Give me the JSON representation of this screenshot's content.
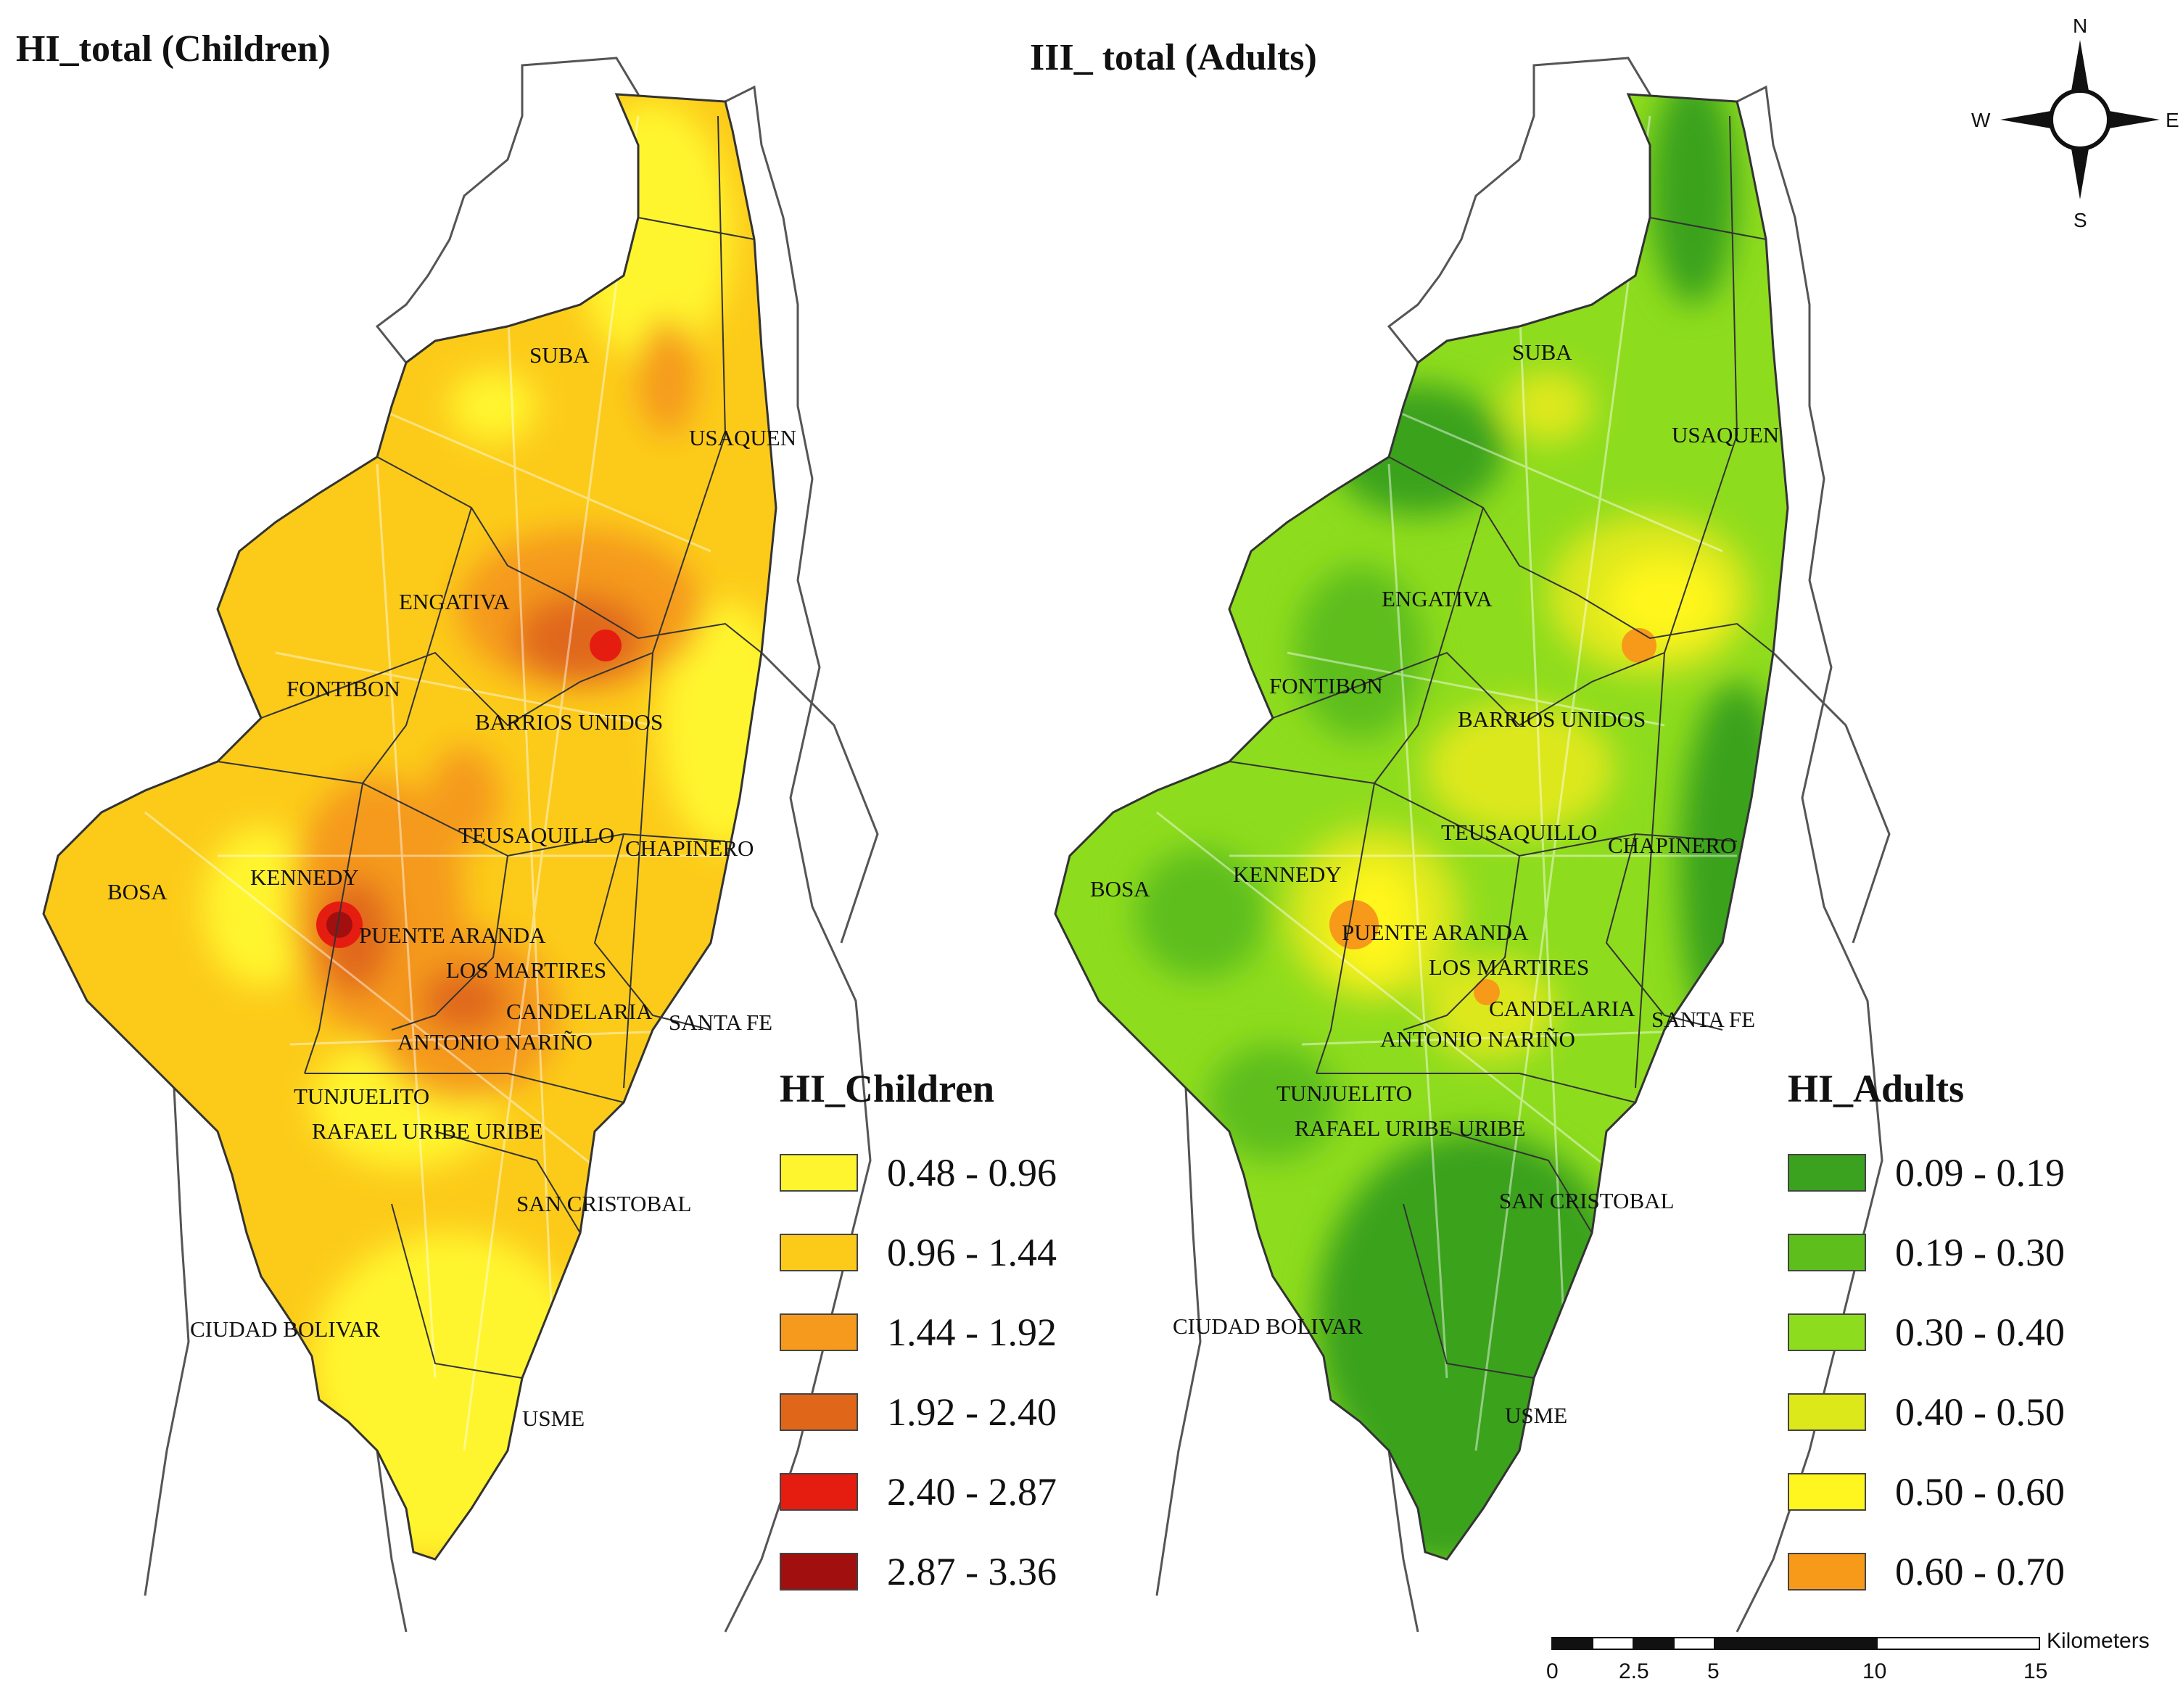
{
  "panels": {
    "children": {
      "title": "HI_total (Children)",
      "legend_title": "HI_Children",
      "classes": [
        {
          "range": "0.48 - 0.96",
          "color": "#FFF52E"
        },
        {
          "range": "0.96 - 1.44",
          "color": "#FCCB1A"
        },
        {
          "range": "1.44 - 1.92",
          "color": "#F59A1C"
        },
        {
          "range": "1.92 - 2.40",
          "color": "#E0671A"
        },
        {
          "range": "2.40 - 2.87",
          "color": "#E51D10"
        },
        {
          "range": "2.87 - 3.36",
          "color": "#A10F0F"
        }
      ],
      "base_color": "#FCCB1A"
    },
    "adults": {
      "title": "III_ total (Adults)",
      "legend_title": "HI_Adults",
      "classes": [
        {
          "range": "0.09 - 0.19",
          "color": "#3AA21F"
        },
        {
          "range": "0.19 - 0.30",
          "color": "#5DBE1C"
        },
        {
          "range": "0.30 - 0.40",
          "color": "#8EDC1E"
        },
        {
          "range": "0.40 - 0.50",
          "color": "#DDE81A"
        },
        {
          "range": "0.50 - 0.60",
          "color": "#FFF61F"
        },
        {
          "range": "0.60 - 0.70",
          "color": "#F79A1A"
        }
      ],
      "base_color": "#8EDC1E"
    }
  },
  "districts": [
    "SUBA",
    "USAQUEN",
    "ENGATIVA",
    "FONTIBON",
    "BARRIOS UNIDOS",
    "TEUSAQUILLO",
    "CHAPINERO",
    "BOSA",
    "KENNEDY",
    "PUENTE ARANDA",
    "LOS MARTIRES",
    "CANDELARIA",
    "SANTA FE",
    "ANTONIO NARIÑO",
    "TUNJUELITO",
    "RAFAEL URIBE URIBE",
    "SAN CRISTOBAL",
    "CIUDAD BOLIVAR",
    "USME"
  ],
  "compass": {
    "n": "N",
    "s": "S",
    "e": "E",
    "w": "W"
  },
  "scale_bar": {
    "unit": "Kilometers",
    "ticks": [
      "0",
      "2.5",
      "5",
      "10",
      "15"
    ]
  }
}
